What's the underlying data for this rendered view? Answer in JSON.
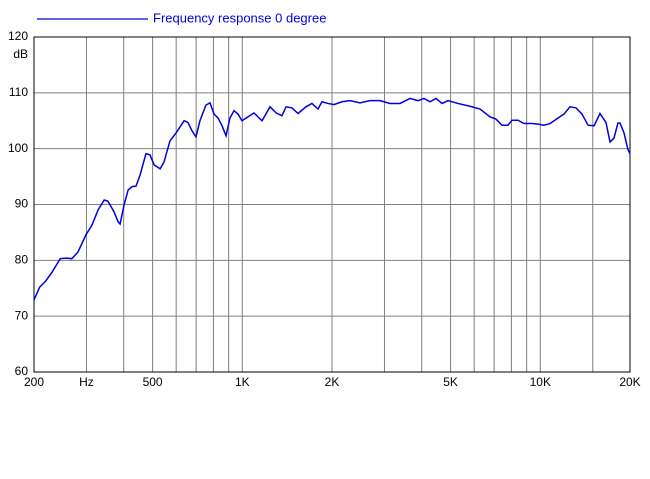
{
  "chart_data": {
    "type": "line",
    "series": [
      {
        "name": "Frequency response 0 degree",
        "color": "#0000e0",
        "x": [
          200,
          209,
          219,
          230,
          245,
          256,
          268,
          281,
          299,
          313,
          328,
          344,
          354,
          371,
          383,
          389,
          401,
          414,
          427,
          440,
          454,
          475,
          490,
          506,
          530,
          546,
          572,
          599,
          638,
          657,
          678,
          699,
          721,
          755,
          779,
          804,
          829,
          855,
          882,
          909,
          938,
          967,
          998,
          1045,
          1094,
          1165,
          1239,
          1298,
          1359,
          1402,
          1468,
          1538,
          1636,
          1713,
          1795,
          1851,
          1939,
          2031,
          2160,
          2298,
          2483,
          2682,
          2899,
          3131,
          3383,
          3654,
          3887,
          4071,
          4265,
          4467,
          4678,
          4900,
          5292,
          5809,
          6277,
          6779,
          7100,
          7437,
          7789,
          8035,
          8418,
          8816,
          9379,
          9823,
          10290,
          10780,
          11470,
          12010,
          12580,
          13180,
          13800,
          14460,
          15150,
          15860,
          16610,
          17140,
          17670,
          18220,
          18510,
          19100,
          19690,
          20000
        ],
        "values": [
          72.9,
          75.2,
          76.3,
          77.9,
          80.3,
          80.4,
          80.3,
          81.5,
          84.6,
          86.3,
          89.0,
          90.8,
          90.6,
          88.7,
          86.9,
          86.5,
          89.9,
          92.6,
          93.2,
          93.3,
          95.3,
          99.1,
          98.9,
          97.1,
          96.4,
          97.6,
          101.4,
          102.8,
          105.0,
          104.7,
          103.2,
          102.1,
          105.0,
          107.8,
          108.2,
          106.2,
          105.5,
          104.1,
          102.3,
          105.5,
          106.8,
          106.2,
          105.0,
          105.7,
          106.4,
          105.0,
          107.5,
          106.4,
          105.9,
          107.5,
          107.3,
          106.3,
          107.5,
          108.1,
          107.1,
          108.4,
          108.1,
          107.9,
          108.4,
          108.6,
          108.2,
          108.6,
          108.6,
          108.1,
          108.1,
          109.0,
          108.6,
          109.0,
          108.4,
          109.0,
          108.1,
          108.6,
          108.1,
          107.6,
          107.1,
          105.7,
          105.3,
          104.2,
          104.2,
          105.1,
          105.1,
          104.5,
          104.5,
          104.4,
          104.2,
          104.5,
          105.5,
          106.2,
          107.5,
          107.3,
          106.2,
          104.2,
          104.1,
          106.3,
          104.7,
          101.2,
          101.9,
          104.6,
          104.6,
          102.8,
          99.8,
          99.1
        ]
      }
    ],
    "xlim": [
      200,
      20000
    ],
    "log_x": true,
    "xticks": [
      200,
      {
        "value": 300,
        "label": "Hz"
      },
      500,
      {
        "value": 1000,
        "label": "1K"
      },
      {
        "value": 2000,
        "label": "2K"
      },
      {
        "value": 5000,
        "label": "5K"
      },
      {
        "value": 10000,
        "label": "10K"
      },
      {
        "value": 20000,
        "label": "20K"
      }
    ],
    "xminor": [
      400,
      600,
      700,
      800,
      900,
      3000,
      4000,
      6000,
      7000,
      8000,
      9000,
      15000
    ],
    "ylim": [
      60,
      120
    ],
    "yticks": [
      60,
      70,
      80,
      90,
      100,
      110,
      120
    ],
    "y_label": "dB",
    "grid": true,
    "legend": "top-left"
  }
}
